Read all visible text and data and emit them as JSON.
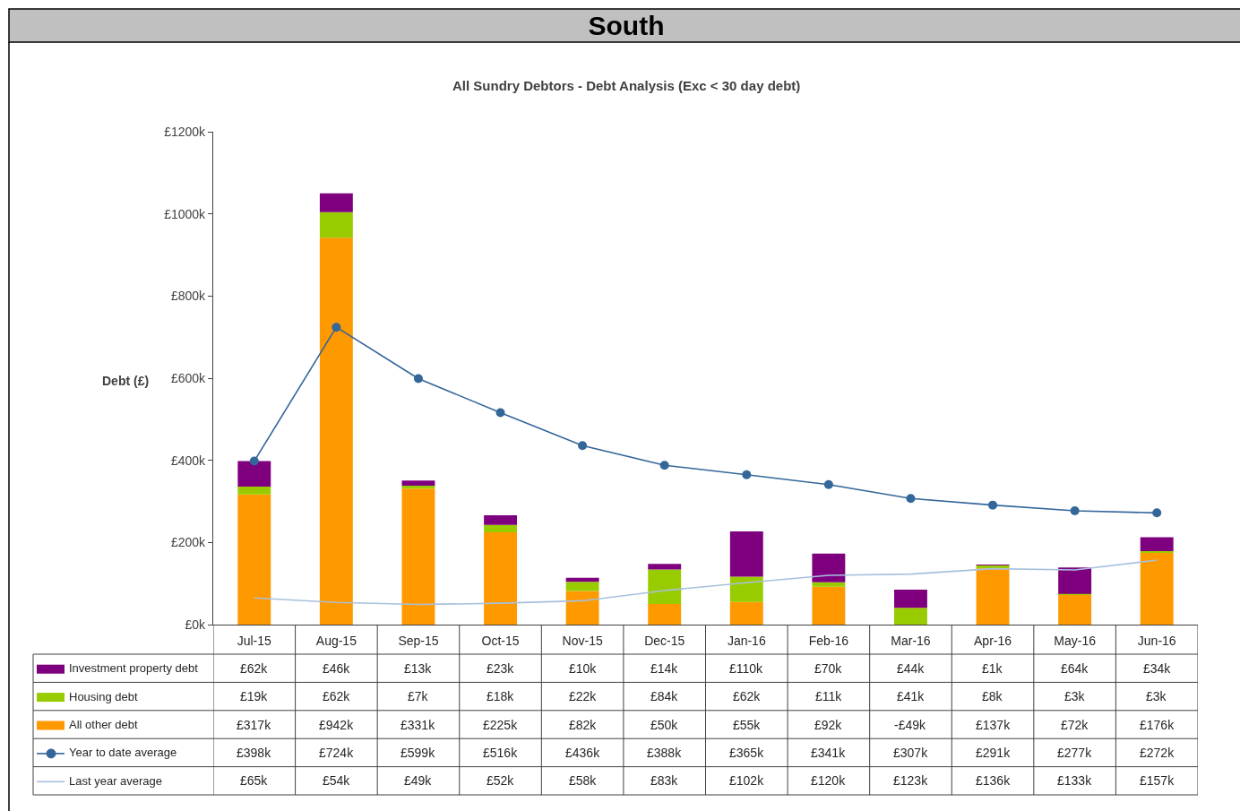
{
  "chart_data": {
    "type": "bar",
    "stacked": true,
    "title": "South",
    "subtitle": "All Sundry Debtors - Debt Analysis (Exc < 30 day debt)",
    "ylabel": "Debt (£)",
    "categories": [
      "Jul-15",
      "Aug-15",
      "Sep-15",
      "Oct-15",
      "Nov-15",
      "Dec-15",
      "Jan-16",
      "Feb-16",
      "Mar-16",
      "Apr-16",
      "May-16",
      "Jun-16"
    ],
    "ylim": [
      0,
      1200
    ],
    "yticks": [
      {
        "value": 0,
        "label": "£0k"
      },
      {
        "value": 200,
        "label": "£200k"
      },
      {
        "value": 400,
        "label": "£400k"
      },
      {
        "value": 600,
        "label": "£600k"
      },
      {
        "value": 800,
        "label": "£800k"
      },
      {
        "value": 1000,
        "label": "£1000k"
      },
      {
        "value": 1200,
        "label": "£1200k"
      }
    ],
    "legend": "bottom left",
    "series": [
      {
        "name": "All other debt",
        "color": "#ff9900",
        "values": [
          317,
          942,
          331,
          225,
          82,
          50,
          55,
          92,
          null,
          137,
          72,
          176
        ],
        "value_labels": [
          "£317k",
          "£942k",
          "£331k",
          "£225k",
          "£82k",
          "£50k",
          "£55k",
          "£92k",
          "-£49k",
          "£137k",
          "£72k",
          "£176k"
        ]
      },
      {
        "name": "Housing debt",
        "color": "#99cc00",
        "values": [
          19,
          62,
          7,
          18,
          22,
          84,
          62,
          11,
          41,
          8,
          3,
          3
        ],
        "value_labels": [
          "£19k",
          "£62k",
          "£7k",
          "£18k",
          "£22k",
          "£84k",
          "£62k",
          "£11k",
          "£41k",
          "£8k",
          "£3k",
          "£3k"
        ]
      },
      {
        "name": "Investment property debt",
        "color": "#7f007f",
        "values": [
          62,
          46,
          13,
          23,
          10,
          14,
          110,
          70,
          44,
          1,
          64,
          34
        ],
        "value_labels": [
          "£62k",
          "£46k",
          "£13k",
          "£23k",
          "£10k",
          "£14k",
          "£110k",
          "£70k",
          "£44k",
          "£1k",
          "£64k",
          "£34k"
        ]
      },
      {
        "name": "Year to date average",
        "type": "line",
        "color": "#336699",
        "marker": "circle",
        "line_style": "solid",
        "values": [
          398,
          724,
          599,
          516,
          436,
          388,
          365,
          341,
          307,
          291,
          277,
          272
        ],
        "value_labels": [
          "£398k",
          "£724k",
          "£599k",
          "£516k",
          "£436k",
          "£388k",
          "£365k",
          "£341k",
          "£307k",
          "£291k",
          "£277k",
          "£272k"
        ]
      },
      {
        "name": "Last year average",
        "type": "line",
        "color": "#a7c0de",
        "marker": "none",
        "line_style": "solid",
        "values": [
          65,
          54,
          49,
          52,
          58,
          83,
          102,
          120,
          123,
          136,
          133,
          157
        ],
        "value_labels": [
          "£65k",
          "£54k",
          "£49k",
          "£52k",
          "£58k",
          "£83k",
          "£102k",
          "£120k",
          "£123k",
          "£136k",
          "£133k",
          "£157k"
        ]
      }
    ]
  }
}
